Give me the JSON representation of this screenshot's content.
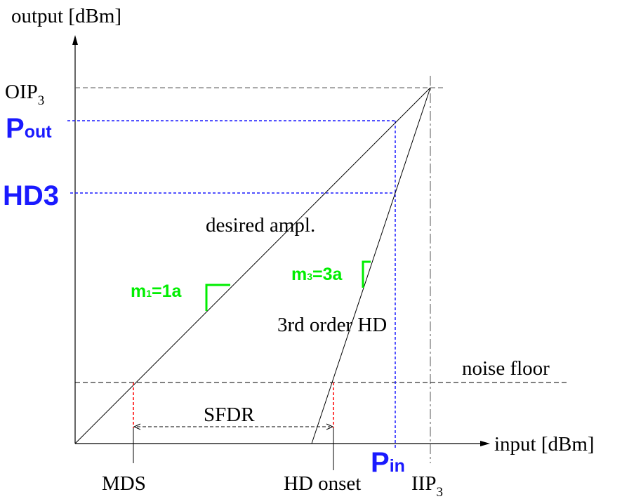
{
  "axes": {
    "y_label": "output [dBm]",
    "x_label": "input [dBm]"
  },
  "y_markers": {
    "oip3": {
      "base": "OIP",
      "sub": "3"
    },
    "pout": {
      "base": "P",
      "sub": "out"
    },
    "hd3": "HD3"
  },
  "x_markers": {
    "mds": "MDS",
    "hd_onset": "HD onset",
    "pin": {
      "base": "P",
      "sub": "in"
    },
    "iip3": {
      "base": "IIP",
      "sub": "3"
    }
  },
  "curves": {
    "desired": "desired ampl.",
    "third_order": "3rd order HD",
    "noise_floor": "noise floor",
    "sfdr": "SFDR"
  },
  "slopes": {
    "m1": {
      "base": "m",
      "sub": "1",
      "rest": "=1a"
    },
    "m3": {
      "base": "m",
      "sub": "3",
      "rest": "=3a"
    }
  },
  "colors": {
    "blue": "#1a1aff",
    "green": "#00ee00",
    "red": "#ff0000",
    "black": "#000000",
    "gray": "#555555"
  }
}
